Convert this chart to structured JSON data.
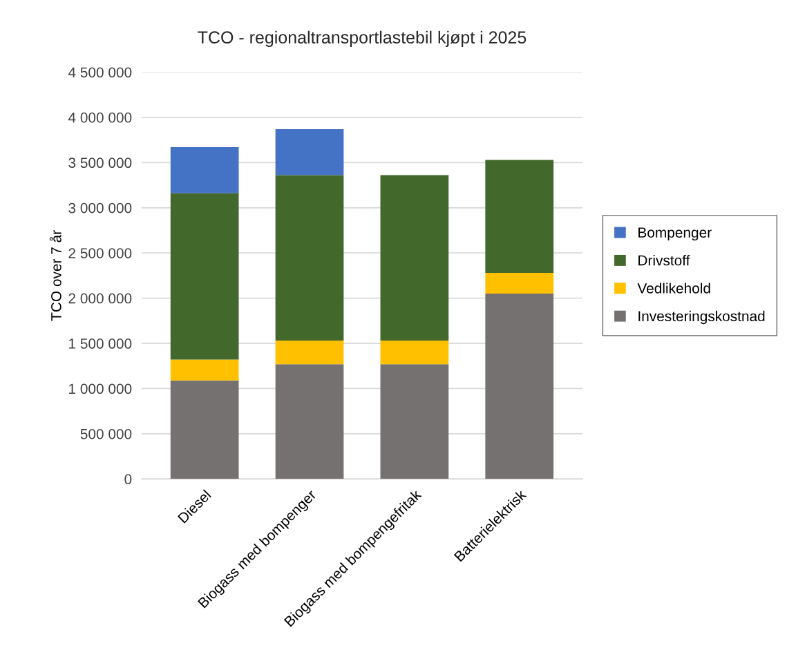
{
  "chart_data": {
    "type": "bar",
    "title": "TCO - regionaltransportlastebil kjøpt i 2025",
    "ylabel": "TCO over 7 år",
    "categories": [
      "Diesel",
      "Biogass med bompenger",
      "Biogass med bompengefritak",
      "Batterielektrisk"
    ],
    "stacked": true,
    "series": [
      {
        "name": "Investeringskostnad",
        "color": "#767171",
        "values": [
          1090000,
          1270000,
          1270000,
          2050000
        ]
      },
      {
        "name": "Vedlikehold",
        "color": "#ffc000",
        "values": [
          230000,
          260000,
          260000,
          230000
        ]
      },
      {
        "name": "Drivstoff",
        "color": "#43682b",
        "values": [
          1840000,
          1830000,
          1830000,
          1250000
        ]
      },
      {
        "name": "Bompenger",
        "color": "#4472c4",
        "values": [
          510000,
          510000,
          null,
          null
        ]
      }
    ],
    "ylim": [
      0,
      4500000
    ],
    "yticks": [
      0,
      {
        "value": 500000,
        "label": "500 000"
      },
      {
        "value": 1000000,
        "label": "1 000 000"
      },
      {
        "value": 1500000,
        "label": "1 500 000"
      },
      {
        "value": 2000000,
        "label": "2 000 000"
      },
      {
        "value": 2500000,
        "label": "2 500 000"
      },
      {
        "value": 3000000,
        "label": "3 000 000"
      },
      {
        "value": 3500000,
        "label": "3 500 000"
      },
      {
        "value": 4000000,
        "label": "4 000 000"
      },
      {
        "value": 4500000,
        "label": "4 500 000"
      }
    ],
    "grid": "y",
    "legend": "right"
  }
}
